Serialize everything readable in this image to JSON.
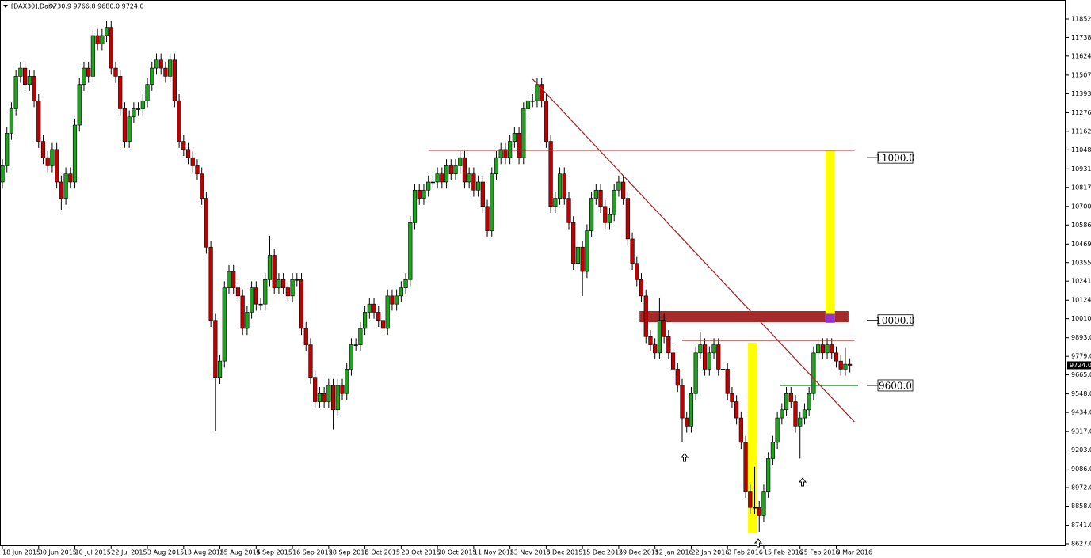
{
  "chart_data": {
    "type": "candlestick",
    "title": "[DAX30],Daily",
    "ohlc_label": "9730.9 9766.8 9680.0 9724.0",
    "categories": [
      "18 Jun 2015",
      null,
      null,
      null,
      null,
      null,
      null,
      null,
      "30 Jun 2015",
      null,
      null,
      null,
      null,
      null,
      null,
      null,
      "10 Jul 2015",
      null,
      null,
      null,
      null,
      null,
      null,
      null,
      "22 Jul 2015",
      null,
      null,
      null,
      null,
      null,
      null,
      null,
      "3 Aug 2015",
      null,
      null,
      null,
      null,
      null,
      null,
      null,
      "13 Aug 2015",
      null,
      null,
      null,
      null,
      null,
      null,
      null,
      "25 Aug 2015",
      null,
      null,
      null,
      null,
      null,
      null,
      null,
      "4 Sep 2015",
      null,
      null,
      null,
      null,
      null,
      null,
      null,
      "16 Sep 2015",
      null,
      null,
      null,
      null,
      null,
      null,
      null,
      "28 Sep 2015",
      null,
      null,
      null,
      null,
      null,
      null,
      null,
      "8 Oct 2015",
      null,
      null,
      null,
      null,
      null,
      null,
      null,
      "20 Oct 2015",
      null,
      null,
      null,
      null,
      null,
      null,
      null,
      "30 Oct 2015",
      null,
      null,
      null,
      null,
      null,
      null,
      null,
      "11 Nov 2015",
      null,
      null,
      null,
      null,
      null,
      null,
      null,
      "23 Nov 2015",
      null,
      null,
      null,
      null,
      null,
      null,
      null,
      "3 Dec 2015",
      null,
      null,
      null,
      null,
      null,
      null,
      null,
      "15 Dec 2015",
      null,
      null,
      null,
      null,
      null,
      null,
      null,
      "29 Dec 2015",
      null,
      null,
      null,
      null,
      null,
      null,
      null,
      "12 Jan 2016",
      null,
      null,
      null,
      null,
      null,
      null,
      null,
      "22 Jan 2016",
      null,
      null,
      null,
      null,
      null,
      null,
      null,
      "3 Feb 2016",
      null,
      null,
      null,
      null,
      null,
      null,
      null,
      "15 Feb 2016",
      null,
      null,
      null,
      null,
      null,
      null,
      null,
      "25 Feb 2016",
      null,
      null,
      null,
      null,
      null,
      null,
      null,
      "8 Mar 2016",
      null,
      null,
      null
    ],
    "open": [
      10850,
      10950,
      11150,
      11300,
      11500,
      11550,
      11450,
      11500,
      11350,
      11100,
      11000,
      10950,
      11050,
      10850,
      10750,
      10900,
      10850,
      11200,
      11450,
      11550,
      11500,
      11750,
      11700,
      11750,
      11800,
      11550,
      11500,
      11300,
      11100,
      11250,
      11300,
      11300,
      11350,
      11450,
      11550,
      11600,
      11550,
      11500,
      11600,
      11350,
      11100,
      11050,
      11000,
      10950,
      10900,
      10750,
      10450,
      10000,
      9650,
      9750,
      10200,
      10300,
      10200,
      10150,
      9950,
      10050,
      10200,
      10100,
      10100,
      10250,
      10400,
      10200,
      10250,
      10200,
      10150,
      10250,
      10250,
      9950,
      9850,
      9650,
      9500,
      9550,
      9500,
      9600,
      9450,
      9600,
      9550,
      9700,
      9850,
      9850,
      9950,
      10050,
      10100,
      10050,
      10000,
      9950,
      10150,
      10100,
      10150,
      10200,
      10250,
      10600,
      10800,
      10750,
      10800,
      10850,
      10850,
      10900,
      10850,
      10950,
      10900,
      10950,
      11000,
      10850,
      10900,
      10800,
      10850,
      10700,
      10550,
      10900,
      11000,
      11050,
      11000,
      11100,
      11150,
      11000,
      11300,
      11350,
      11350,
      11450,
      11350,
      11100,
      10700,
      10750,
      10900,
      10750,
      10600,
      10350,
      10450,
      10300,
      10550,
      10750,
      10800,
      10700,
      10600,
      10650,
      10800,
      10850,
      10750,
      10500,
      10350,
      10250,
      10150,
      9900,
      9850,
      9800,
      10000,
      9900,
      9800,
      9700,
      9600,
      9400,
      9350,
      9550,
      9800,
      9850,
      9700,
      9800,
      9850,
      9700,
      9700,
      9550,
      9500,
      9400,
      9250,
      8950,
      8850,
      8850,
      8800,
      8950,
      9150,
      9250,
      9400,
      9450,
      9550,
      9500,
      9350,
      9400,
      9450,
      9550,
      9800,
      9850,
      9800,
      9850,
      9800,
      9750,
      9700,
      9730.9
    ],
    "high": [
      10990,
      11190,
      11340,
      11540,
      11590,
      11590,
      11540,
      11540,
      11390,
      11140,
      11040,
      11090,
      11090,
      10890,
      10940,
      10940,
      11240,
      11490,
      11590,
      11590,
      11790,
      11790,
      11790,
      11840,
      11840,
      11590,
      11540,
      11340,
      11290,
      11340,
      11340,
      11390,
      11490,
      11590,
      11640,
      11640,
      11590,
      11640,
      11640,
      11390,
      11140,
      11090,
      11040,
      10990,
      10940,
      10790,
      10490,
      10040,
      9790,
      10240,
      10340,
      10340,
      10240,
      10190,
      10090,
      10240,
      10240,
      10140,
      10290,
      10520,
      10440,
      10290,
      10290,
      10240,
      10290,
      10290,
      10290,
      9990,
      9890,
      9690,
      9590,
      9590,
      9640,
      9640,
      9640,
      9640,
      9740,
      9890,
      9890,
      9990,
      10090,
      10140,
      10140,
      10090,
      10040,
      10190,
      10190,
      10190,
      10240,
      10290,
      10640,
      10840,
      10840,
      10840,
      10890,
      10890,
      10940,
      10940,
      10990,
      10990,
      10990,
      11040,
      11040,
      10940,
      10940,
      10890,
      10890,
      10740,
      10940,
      11040,
      11090,
      11090,
      11140,
      11190,
      11190,
      11340,
      11390,
      11390,
      11490,
      11490,
      11390,
      11140,
      10790,
      10940,
      10940,
      10790,
      10640,
      10490,
      10490,
      10590,
      10790,
      10840,
      10840,
      10740,
      10690,
      10840,
      10890,
      10890,
      10790,
      10540,
      10390,
      10290,
      10190,
      9940,
      9890,
      10140,
      10040,
      9940,
      9840,
      9740,
      9640,
      9440,
      9590,
      9840,
      9930,
      9890,
      9840,
      9890,
      9890,
      9740,
      9740,
      9590,
      9540,
      9440,
      9290,
      8990,
      9100,
      8890,
      8990,
      9190,
      9290,
      9440,
      9490,
      9590,
      9590,
      9540,
      9440,
      9490,
      9590,
      9840,
      9890,
      9890,
      9890,
      9890,
      9840,
      9790,
      9830,
      9766.8
    ],
    "low": [
      10810,
      10910,
      11110,
      11260,
      11460,
      11410,
      11410,
      11310,
      11060,
      10960,
      10910,
      10910,
      10810,
      10680,
      10710,
      10810,
      10810,
      11160,
      11410,
      11460,
      11460,
      11660,
      11660,
      11710,
      11510,
      11460,
      11260,
      11060,
      11060,
      11210,
      11260,
      11260,
      11310,
      11410,
      11510,
      11510,
      11460,
      11460,
      11310,
      11060,
      11010,
      10960,
      10910,
      10860,
      10710,
      10410,
      9960,
      9320,
      9610,
      9710,
      10160,
      10160,
      10110,
      9910,
      9910,
      10010,
      10060,
      10060,
      10060,
      10210,
      10160,
      10160,
      10160,
      10110,
      10110,
      10210,
      9910,
      9810,
      9610,
      9460,
      9460,
      9460,
      9460,
      9330,
      9410,
      9510,
      9510,
      9660,
      9810,
      9810,
      9910,
      10010,
      10010,
      9960,
      9910,
      9910,
      10060,
      10060,
      10110,
      10160,
      10210,
      10560,
      10710,
      10710,
      10760,
      10810,
      10810,
      10810,
      10810,
      10860,
      10860,
      10910,
      10810,
      10810,
      10760,
      10760,
      10660,
      10510,
      10510,
      10860,
      10960,
      10960,
      10960,
      11060,
      10960,
      10960,
      11260,
      11310,
      11310,
      11310,
      11060,
      10660,
      10660,
      10710,
      10710,
      10560,
      10310,
      10310,
      10150,
      10260,
      10510,
      10710,
      10660,
      10560,
      10560,
      10610,
      10760,
      10710,
      10460,
      10310,
      10210,
      10110,
      9860,
      9810,
      9760,
      9760,
      9860,
      9760,
      9660,
      9560,
      9250,
      9310,
      9310,
      9510,
      9760,
      9660,
      9660,
      9760,
      9660,
      9660,
      9510,
      9460,
      9360,
      9210,
      8910,
      8810,
      8810,
      8700,
      8760,
      8910,
      9110,
      9210,
      9360,
      9410,
      9460,
      9310,
      9150,
      9360,
      9410,
      9510,
      9760,
      9760,
      9760,
      9760,
      9710,
      9660,
      9660,
      9680.0
    ],
    "close": [
      10950,
      11150,
      11300,
      11500,
      11550,
      11450,
      11500,
      11350,
      11100,
      11000,
      10950,
      11050,
      10850,
      10750,
      10900,
      10850,
      11200,
      11450,
      11550,
      11500,
      11750,
      11700,
      11750,
      11800,
      11550,
      11500,
      11300,
      11100,
      11250,
      11300,
      11300,
      11350,
      11450,
      11550,
      11600,
      11550,
      11500,
      11600,
      11350,
      11100,
      11050,
      11000,
      10950,
      10900,
      10750,
      10450,
      10000,
      9650,
      9750,
      10200,
      10300,
      10200,
      10150,
      9950,
      10050,
      10200,
      10100,
      10100,
      10250,
      10400,
      10200,
      10250,
      10200,
      10150,
      10250,
      10250,
      9950,
      9850,
      9650,
      9500,
      9550,
      9500,
      9600,
      9450,
      9600,
      9550,
      9700,
      9850,
      9850,
      9950,
      10050,
      10100,
      10050,
      10000,
      9950,
      10150,
      10100,
      10150,
      10200,
      10250,
      10600,
      10800,
      10750,
      10800,
      10850,
      10850,
      10900,
      10850,
      10950,
      10900,
      10950,
      11000,
      10850,
      10900,
      10800,
      10850,
      10700,
      10550,
      10900,
      11000,
      11050,
      11000,
      11100,
      11150,
      11000,
      11300,
      11350,
      11350,
      11450,
      11350,
      11100,
      10700,
      10750,
      10900,
      10750,
      10600,
      10350,
      10450,
      10300,
      10550,
      10750,
      10800,
      10700,
      10600,
      10650,
      10800,
      10850,
      10750,
      10500,
      10350,
      10250,
      10150,
      9900,
      9850,
      9800,
      10000,
      9900,
      9800,
      9700,
      9600,
      9400,
      9350,
      9550,
      9800,
      9850,
      9700,
      9800,
      9850,
      9700,
      9700,
      9550,
      9500,
      9400,
      9250,
      8950,
      8850,
      8850,
      8800,
      8950,
      9150,
      9250,
      9400,
      9450,
      9550,
      9500,
      9350,
      9400,
      9450,
      9550,
      9800,
      9850,
      9800,
      9850,
      9800,
      9750,
      9700,
      9731,
      9724.0
    ],
    "up_color": "#1fa31f",
    "down_color": "#c00000",
    "ylim": [
      8612.4,
      11968.7
    ],
    "yticks": [
      {
        "value": 11852,
        "label": "11852.0"
      },
      {
        "value": 11738,
        "label": "11738.0"
      },
      {
        "value": 11624,
        "label": "11624.0"
      },
      {
        "value": 11507,
        "label": "11507.0"
      },
      {
        "value": 11393,
        "label": "11393.0"
      },
      {
        "value": 11276,
        "label": "11276.0"
      },
      {
        "value": 11162,
        "label": "11162.0"
      },
      {
        "value": 11048,
        "label": "11048.0"
      },
      {
        "value": 10931,
        "label": "10931.0"
      },
      {
        "value": 10817,
        "label": "10817.0"
      },
      {
        "value": 10700,
        "label": "10700.0"
      },
      {
        "value": 10586,
        "label": "10586.0"
      },
      {
        "value": 10469,
        "label": "10469.0"
      },
      {
        "value": 10355,
        "label": "10355.0"
      },
      {
        "value": 10241,
        "label": "10241.0"
      },
      {
        "value": 10124,
        "label": "10124.0"
      },
      {
        "value": 10010,
        "label": "10010.0"
      },
      {
        "value": 9893,
        "label": "9893.0"
      },
      {
        "value": 9779,
        "label": "9779.0"
      },
      {
        "value": 9665,
        "label": "9665.0"
      },
      {
        "value": 9548,
        "label": "9548.0"
      },
      {
        "value": 9434,
        "label": "9434.0"
      },
      {
        "value": 9317,
        "label": "9317.0"
      },
      {
        "value": 9203,
        "label": "9203.0"
      },
      {
        "value": 9086,
        "label": "9086.0"
      },
      {
        "value": 8972,
        "label": "8972.0"
      },
      {
        "value": 8858,
        "label": "8858.0"
      },
      {
        "value": 8741,
        "label": "8741.0"
      },
      {
        "value": 8627,
        "label": "8627.0"
      }
    ],
    "last_price": {
      "value": 9724,
      "label": "9724.0"
    },
    "hlines": [
      {
        "price": 11045,
        "from": 94,
        "to": 188,
        "color": "#a52a2a"
      },
      {
        "price": 9877,
        "from": 150,
        "to": 188,
        "color": "#a52a2a"
      },
      {
        "price": 9600,
        "from": 171.7,
        "to": 188.8,
        "color": "#008000"
      }
    ],
    "trendline": {
      "from": [
        117,
        11483
      ],
      "to": [
        188,
        9376
      ],
      "color": "#a52a2a"
    },
    "zones": [
      {
        "from": 140.6,
        "to": 186.7,
        "top": 10057,
        "bottom": 9989,
        "color": "#a52a2a"
      },
      {
        "from": 164.5,
        "to": 166.6,
        "top": 9863,
        "bottom": 8695,
        "color": "#ffff00"
      },
      {
        "from": 181.6,
        "to": 183.7,
        "top": 11045,
        "bottom": 10000,
        "color": "#ffff00"
      },
      {
        "from": 181.6,
        "to": 183.7,
        "top": 10040,
        "bottom": 9985,
        "color": "#9932cc"
      }
    ],
    "levels": [
      {
        "value": 11000,
        "label": "11000.0"
      },
      {
        "value": 10000,
        "label": "10000.0"
      },
      {
        "value": 9600,
        "label": "9600.0"
      }
    ]
  }
}
